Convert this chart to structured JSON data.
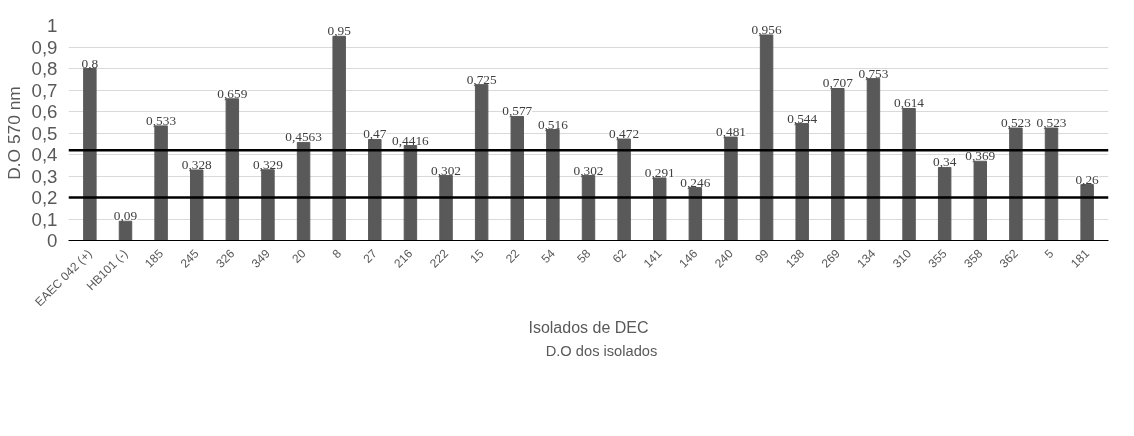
{
  "chart_data": {
    "type": "bar",
    "xlabel": "Isolados de DEC",
    "ylabel": "D.O 570 nm",
    "categories": [
      "EAEC 042 (+)",
      "HB101 (-)",
      "185",
      "245",
      "326",
      "349",
      "20",
      "8",
      "27",
      "216",
      "222",
      "15",
      "22",
      "54",
      "58",
      "62",
      "141",
      "146",
      "240",
      "99",
      "138",
      "269",
      "134",
      "310",
      "355",
      "358",
      "362",
      "5",
      "181"
    ],
    "series": [
      {
        "name": "D.O dos isolados",
        "color": "#595959",
        "values": [
          0.8,
          0.09,
          0.533,
          0.328,
          0.659,
          0.329,
          0.4563,
          0.95,
          0.47,
          0.4416,
          0.302,
          0.725,
          0.577,
          0.516,
          0.302,
          0.472,
          0.291,
          0.246,
          0.481,
          0.956,
          0.544,
          0.707,
          0.753,
          0.614,
          0.34,
          0.369,
          0.523,
          0.523,
          0.26
        ],
        "value_labels": [
          "0,8",
          "0,09",
          "0,533",
          "0,328",
          "0,659",
          "0,329",
          "0,4563",
          "0,95",
          "0,47",
          "0,4416",
          "0,302",
          "0,725",
          "0,577",
          "0,516",
          "0,302",
          "0,472",
          "0,291",
          "0,246",
          "0,481",
          "0,956",
          "0,544",
          "0,707",
          "0,753",
          "0,614",
          "0,34",
          "0,369",
          "0,523",
          "0,523",
          "0,26"
        ]
      }
    ],
    "ylim": [
      0,
      1
    ],
    "yticks": [
      {
        "value": 0,
        "label": "0"
      },
      {
        "value": 0.1,
        "label": "0,1"
      },
      {
        "value": 0.2,
        "label": "0,2"
      },
      {
        "value": 0.3,
        "label": "0,3"
      },
      {
        "value": 0.4,
        "label": "0,4"
      },
      {
        "value": 0.5,
        "label": "0,5"
      },
      {
        "value": 0.6,
        "label": "0,6"
      },
      {
        "value": 0.7,
        "label": "0,7"
      },
      {
        "value": 0.8,
        "label": "0,8"
      },
      {
        "value": 0.9,
        "label": "0,9"
      },
      {
        "value": 1,
        "label": "1"
      }
    ],
    "ref_lines": [
      {
        "axis": "y",
        "value": 0.42,
        "color": "#000000"
      },
      {
        "axis": "y",
        "value": 0.2,
        "color": "#000000"
      }
    ],
    "grid": "y",
    "legend": "bottom"
  }
}
